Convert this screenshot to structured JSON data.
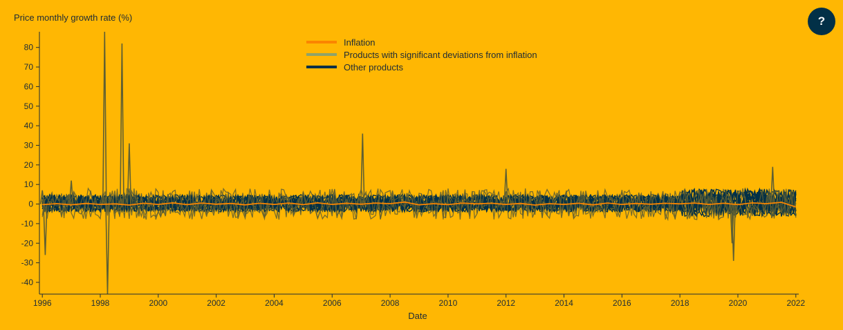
{
  "help_button": {
    "label": "?"
  },
  "colors": {
    "background": "#ffb703",
    "inflation": "#fb8500",
    "significant": "#8ea36a",
    "other": "#023047",
    "spike_lines": "#5f5f32"
  },
  "chart_data": {
    "type": "line",
    "title": "",
    "ylabel": "Price monthly growth rate (%)",
    "xlabel": "Date",
    "xlim": [
      1995.9,
      2022.1
    ],
    "ylim": [
      -46,
      88
    ],
    "xticks": [
      "1996",
      "1998",
      "2000",
      "2002",
      "2004",
      "2006",
      "2008",
      "2010",
      "2012",
      "2014",
      "2016",
      "2018",
      "2020",
      "2022"
    ],
    "yticks": [
      -40,
      -30,
      -20,
      -10,
      0,
      10,
      20,
      30,
      40,
      50,
      60,
      70,
      80
    ],
    "legend": {
      "position": "top-center",
      "entries": [
        "Inflation",
        "Products with significant deviations from inflation",
        "Other products"
      ]
    },
    "grid": false,
    "series": [
      {
        "name": "Inflation",
        "x": [
          1996,
          1996.5,
          1997,
          1997.5,
          1998,
          1998.5,
          1999,
          1999.5,
          2000,
          2000.5,
          2001,
          2001.5,
          2002,
          2002.5,
          2003,
          2003.5,
          2004,
          2004.5,
          2005,
          2005.5,
          2006,
          2006.5,
          2007,
          2007.5,
          2008,
          2008.5,
          2009,
          2009.5,
          2010,
          2010.5,
          2011,
          2011.5,
          2012,
          2012.5,
          2013,
          2013.5,
          2014,
          2014.5,
          2015,
          2015.5,
          2016,
          2016.5,
          2017,
          2017.5,
          2018,
          2018.5,
          2019,
          2019.5,
          2020,
          2020.5,
          2021,
          2021.5,
          2022
        ],
        "y": [
          -0.3,
          0.2,
          -0.4,
          0.3,
          -0.2,
          0.1,
          -0.5,
          0.4,
          -0.2,
          0.6,
          -0.3,
          0.5,
          -0.1,
          0.3,
          -0.4,
          0.4,
          -0.2,
          0.5,
          -0.3,
          0.6,
          -0.2,
          0.4,
          -0.1,
          0.5,
          0.2,
          1.0,
          -0.4,
          0.2,
          -0.3,
          0.5,
          0.1,
          0.4,
          -0.2,
          0.3,
          -0.5,
          0.2,
          -0.2,
          0.4,
          -0.4,
          0.5,
          -0.2,
          0.3,
          -0.1,
          0.4,
          0.1,
          0.5,
          -0.2,
          0.4,
          -0.3,
          0.6,
          0.2,
          0.9,
          -1.5
        ]
      },
      {
        "name": "Products with significant deviations from inflation",
        "x": [
          1996,
          1996.1,
          1997,
          1998.1,
          1998.15,
          1998.25,
          1998.7,
          1998.75,
          1999,
          2007.05,
          2007.1,
          2012.0,
          2019.8,
          2019.85,
          2021.2
        ],
        "y": [
          7,
          -26,
          12,
          2,
          88,
          -46,
          3,
          82,
          31,
          36,
          2,
          18,
          -20,
          -29,
          19
        ]
      },
      {
        "name": "Other products",
        "x_range": [
          1996,
          2022
        ],
        "band": [
          -5,
          6
        ]
      }
    ]
  }
}
